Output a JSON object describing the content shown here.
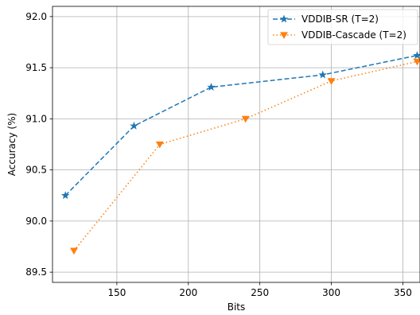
{
  "chart_data": {
    "type": "line",
    "xlabel": "Bits",
    "ylabel": "Accuracy (%)",
    "xlim": [
      105,
      362
    ],
    "ylim": [
      89.4,
      92.1
    ],
    "xticks": [
      150,
      200,
      250,
      300,
      350
    ],
    "yticks": [
      89.5,
      90.0,
      90.5,
      91.0,
      91.5,
      92.0
    ],
    "xtick_labels": [
      "150",
      "200",
      "250",
      "300",
      "350"
    ],
    "ytick_labels": [
      "89.5",
      "90.0",
      "90.5",
      "91.0",
      "91.5",
      "92.0"
    ],
    "grid": true,
    "legend_position": "top-right",
    "series": [
      {
        "name": "VDDIB-SR (T=2)",
        "color": "#1f77b4",
        "line_style": "dashed",
        "marker": "star",
        "x": [
          114,
          162,
          216,
          294,
          360
        ],
        "y": [
          90.25,
          90.93,
          91.31,
          91.43,
          91.62
        ]
      },
      {
        "name": "VDDIB-Cascade (T=2)",
        "color": "#ff7f0e",
        "line_style": "dotted",
        "marker": "triangle-down",
        "x": [
          120,
          180,
          240,
          300,
          360
        ],
        "y": [
          89.71,
          90.75,
          91.0,
          91.37,
          91.56
        ]
      }
    ]
  }
}
